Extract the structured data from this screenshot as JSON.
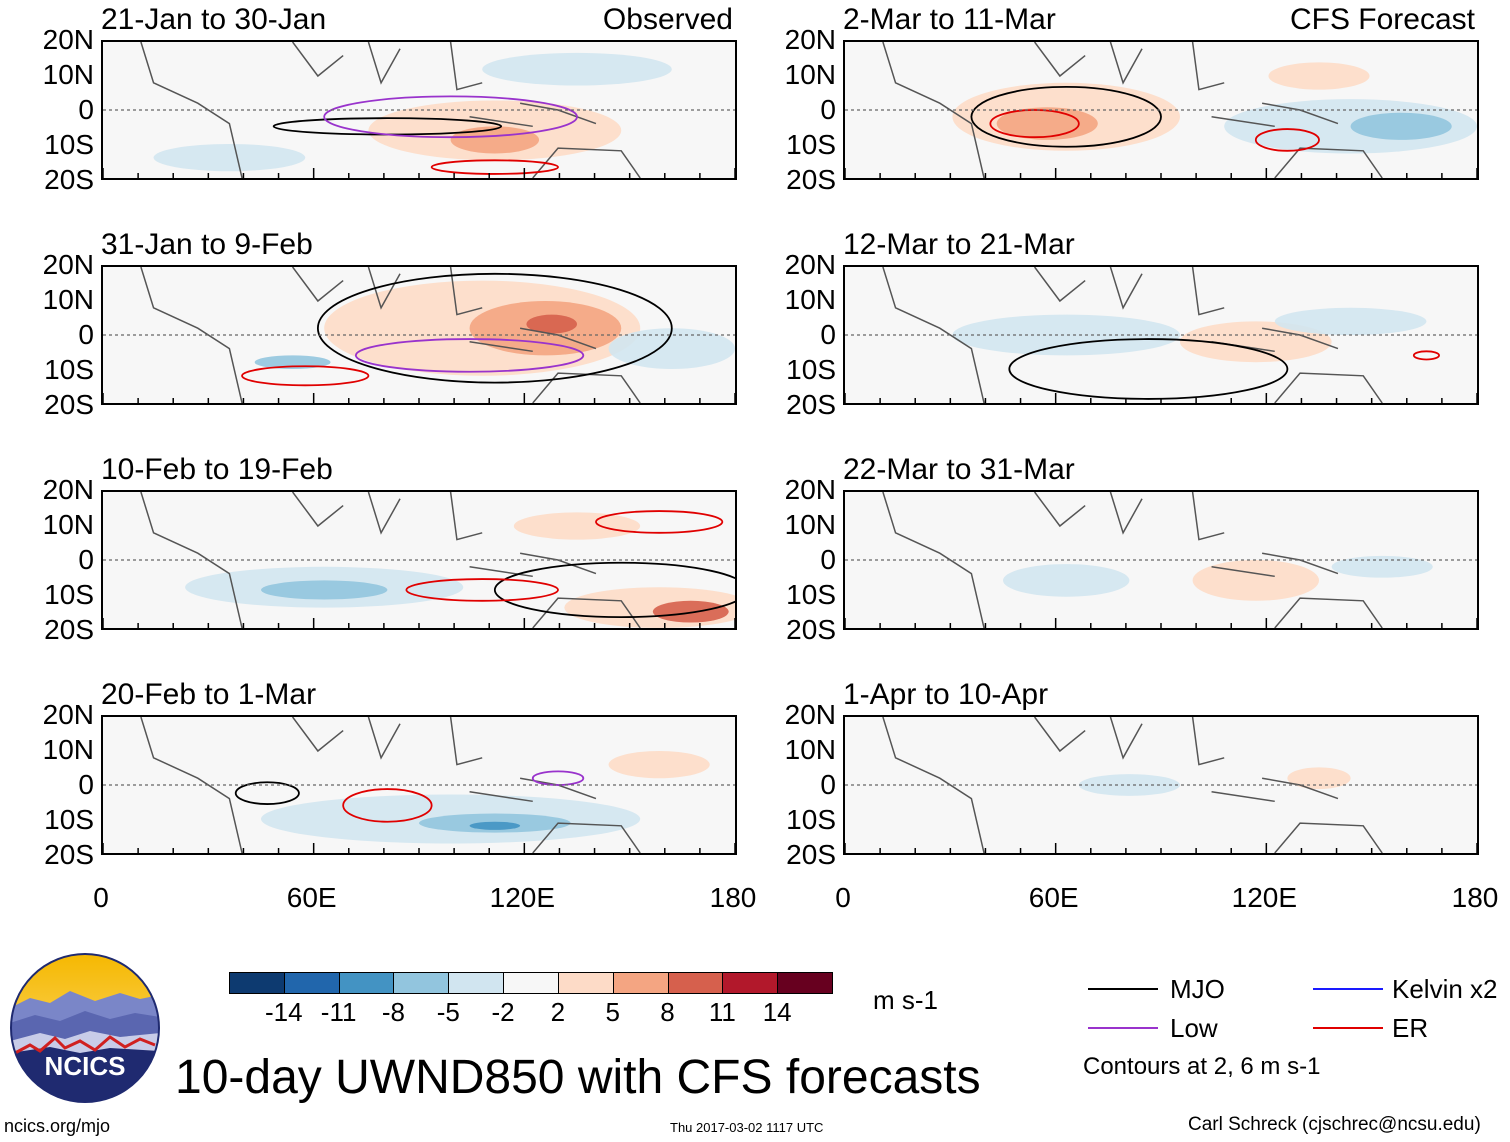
{
  "chart_data": {
    "type": "heatmap",
    "title": "10-day UWND850 with CFS forecasts",
    "units": "m s-1",
    "x_axis": {
      "ticks": [
        "0",
        "60E",
        "120E",
        "180"
      ],
      "range": [
        0,
        180
      ]
    },
    "y_axis": {
      "ticks": [
        "20N",
        "10N",
        "0",
        "10S",
        "20S"
      ],
      "range": [
        -20,
        20
      ]
    },
    "observed_label": "Observed",
    "forecast_label": "CFS Forecast",
    "panels_left": [
      {
        "title": "21-Jan to 30-Jan",
        "tag": "Observed"
      },
      {
        "title": "31-Jan to 9-Feb",
        "tag": ""
      },
      {
        "title": "10-Feb to 19-Feb",
        "tag": ""
      },
      {
        "title": "20-Feb to 1-Mar",
        "tag": ""
      }
    ],
    "panels_right": [
      {
        "title": "2-Mar to 11-Mar",
        "tag": "CFS Forecast"
      },
      {
        "title": "12-Mar to 21-Mar",
        "tag": ""
      },
      {
        "title": "22-Mar to 31-Mar",
        "tag": ""
      },
      {
        "title": "1-Apr to 10-Apr",
        "tag": ""
      }
    ],
    "colorbar": {
      "ticks": [
        "-14",
        "-11",
        "-8",
        "-5",
        "-2",
        "2",
        "5",
        "8",
        "11",
        "14"
      ],
      "colors": [
        "#0d3a70",
        "#2166ac",
        "#4393c3",
        "#92c5de",
        "#d1e5f0",
        "#f7f7f7",
        "#fddbc7",
        "#f4a582",
        "#d6604d",
        "#b2182b",
        "#67001f"
      ]
    },
    "legend": [
      {
        "label": "MJO",
        "color": "#000000"
      },
      {
        "label": "Kelvin x2",
        "color": "#1a1aff"
      },
      {
        "label": "Low",
        "color": "#9933cc"
      },
      {
        "label": "ER",
        "color": "#e00000"
      }
    ],
    "contour_note": "Contours at 2, 6 m s-1"
  },
  "footer": {
    "left": "ncics.org/mjo",
    "center": "Thu 2017-03-02 1117 UTC",
    "right": "Carl Schreck (cjschrec@ncsu.edu)"
  },
  "logo_text": "NCICS"
}
